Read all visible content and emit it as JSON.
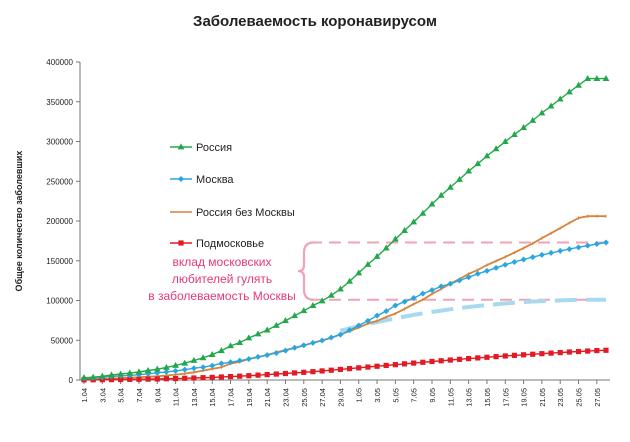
{
  "chart_data": {
    "type": "line",
    "title": "Заболеваемость коронавирусом",
    "ylabel": "Общее количество заболевших",
    "xlabel": "",
    "ylim": [
      0,
      400000
    ],
    "yticks": [
      0,
      50000,
      100000,
      150000,
      200000,
      250000,
      300000,
      350000,
      400000
    ],
    "ytick_labels": [
      "0",
      "50000",
      "100000",
      "150000",
      "200000",
      "250000",
      "300000",
      "350000",
      "400000"
    ],
    "x_tick_labels": [
      "1.04",
      "3.04",
      "5.04",
      "7.04",
      "9.04",
      "11.04",
      "13.04",
      "15.04",
      "17.04",
      "19.04",
      "21.04",
      "23.04",
      "25.05",
      "27.04",
      "29.04",
      "1.05",
      "3.05",
      "5.05",
      "7.05",
      "9.05",
      "11.05",
      "13.05",
      "15.05",
      "17.05",
      "19.05",
      "21.05",
      "23.05",
      "25.05",
      "27.05"
    ],
    "n_points": 58,
    "grid": false,
    "legend_placement": "upper-left inside plot",
    "series": [
      {
        "name": "Россия",
        "color": "#22a84a",
        "marker": "triangle",
        "values": [
          2800,
          3500,
          4700,
          6300,
          7500,
          8700,
          10100,
          11900,
          13600,
          15800,
          18300,
          21100,
          24500,
          27900,
          32000,
          36800,
          42900,
          47100,
          52800,
          57900,
          62800,
          68600,
          74600,
          80900,
          87100,
          93600,
          99400,
          106500,
          114400,
          124100,
          134700,
          145300,
          155400,
          165900,
          177200,
          187900,
          198700,
          209700,
          221300,
          232200,
          242300,
          252300,
          262800,
          272000,
          281800,
          290700,
          299900,
          308700,
          317500,
          326400,
          335900,
          344500,
          353400,
          362300,
          370700,
          379100,
          379100,
          379100
        ]
      },
      {
        "name": "Москва",
        "color": "#2aa6df",
        "marker": "diamond",
        "values": [
          2200,
          2600,
          3400,
          4500,
          5200,
          5800,
          6700,
          7800,
          8900,
          10200,
          11500,
          13000,
          14800,
          16100,
          18100,
          20700,
          22300,
          24300,
          26400,
          29100,
          31300,
          33900,
          36900,
          40600,
          43700,
          46700,
          49700,
          53400,
          57000,
          62700,
          68600,
          74400,
          81000,
          86700,
          93700,
          98500,
          103200,
          108700,
          113000,
          117700,
          121000,
          125200,
          129300,
          133600,
          137200,
          141000,
          145000,
          148500,
          151600,
          154600,
          157400,
          159900,
          162400,
          164700,
          166900,
          169000,
          171100,
          173000
        ]
      },
      {
        "name": "Россия без Москвы",
        "color": "#d9823b",
        "marker": "none",
        "values": [
          600,
          900,
          1300,
          1800,
          2300,
          2900,
          3400,
          4100,
          4700,
          5600,
          6800,
          8100,
          9700,
          11800,
          13900,
          16100,
          20600,
          22800,
          26400,
          28800,
          31500,
          34700,
          37700,
          40300,
          43400,
          46900,
          49700,
          53100,
          57400,
          61400,
          66100,
          70900,
          74400,
          79200,
          83500,
          89400,
          95500,
          101000,
          108300,
          114500,
          121300,
          127100,
          133500,
          138400,
          144600,
          149700,
          154900,
          160200,
          165900,
          171800,
          178500,
          184600,
          191000,
          197600,
          203800,
          206000,
          206000,
          206000
        ]
      },
      {
        "name": "Подмосковье",
        "color": "#e21a23",
        "marker": "square",
        "values": [
          200,
          300,
          400,
          500,
          600,
          800,
          900,
          1100,
          1300,
          1600,
          1800,
          2200,
          2500,
          2900,
          3300,
          3800,
          4300,
          4800,
          5400,
          6100,
          6800,
          7500,
          8200,
          8900,
          9700,
          10500,
          11400,
          12300,
          13300,
          14300,
          15300,
          16300,
          17300,
          18300,
          19300,
          20300,
          21300,
          22300,
          23300,
          24200,
          25100,
          26000,
          26900,
          27800,
          28600,
          29400,
          30200,
          31000,
          31700,
          32400,
          33100,
          33800,
          34500,
          35200,
          35800,
          36400,
          37000,
          37400
        ]
      }
    ],
    "annotation": {
      "text": [
        "вклад московских",
        "любителей гулять",
        "в заболеваемость Москвы"
      ],
      "color": "#e8377a",
      "bracket_from": 101000,
      "bracket_to": 173000,
      "dashed_line_color": "#f0a3b5",
      "trend_line_color": "#a9d9f0"
    }
  }
}
